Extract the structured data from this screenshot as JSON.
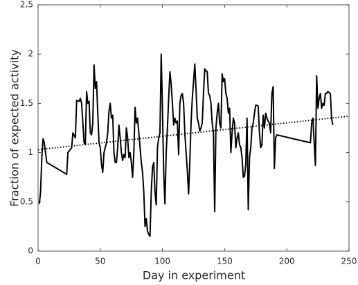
{
  "chart_data": {
    "type": "line",
    "xlabel": "Day in experiment",
    "ylabel": "Fraction of expected activity",
    "xlim": [
      0,
      250
    ],
    "xticks": [
      0,
      50,
      100,
      150,
      200,
      250
    ],
    "ylim": [
      0,
      2.5
    ],
    "yticks": [
      0,
      0.5,
      1,
      1.5,
      2,
      2.5
    ],
    "color": "#000000",
    "x": [
      1,
      2,
      3,
      4,
      5,
      7,
      23,
      24,
      27,
      28,
      30,
      31,
      33,
      34,
      35,
      36,
      37,
      38,
      39,
      40,
      41,
      42,
      43,
      44,
      45,
      46,
      47,
      48,
      49,
      50,
      51,
      52,
      53,
      54,
      55,
      56,
      57,
      58,
      59,
      60,
      61,
      62,
      63,
      64,
      65,
      66,
      67,
      68,
      69,
      70,
      71,
      72,
      73,
      74,
      75,
      76,
      77,
      78,
      79,
      80,
      81,
      82,
      83,
      84,
      85,
      86,
      87,
      88,
      89,
      90,
      91,
      92,
      93,
      94,
      95,
      96,
      97,
      98,
      99,
      100,
      101,
      102,
      103,
      104,
      105,
      106,
      107,
      108,
      109,
      110,
      111,
      112,
      113,
      114,
      115,
      116,
      117,
      118,
      119,
      120,
      121,
      122,
      123,
      124,
      125,
      126,
      127,
      128,
      129,
      130,
      131,
      132,
      133,
      134,
      135,
      136,
      137,
      138,
      139,
      140,
      141,
      142,
      143,
      144,
      145,
      146,
      147,
      148,
      149,
      150,
      151,
      152,
      153,
      154,
      155,
      156,
      157,
      158,
      159,
      160,
      161,
      162,
      163,
      164,
      165,
      166,
      167,
      168,
      169,
      170,
      171,
      172,
      173,
      174,
      175,
      176,
      177,
      178,
      179,
      180,
      181,
      182,
      183,
      184,
      185,
      186,
      187,
      188,
      189,
      190,
      191,
      192,
      219,
      220,
      221,
      222,
      223,
      224,
      225,
      226,
      227,
      228,
      229,
      230,
      231,
      232,
      233,
      234,
      235,
      236,
      237
    ],
    "values": [
      0.48,
      0.6,
      0.95,
      1.14,
      1.1,
      0.9,
      0.78,
      1.0,
      1.05,
      1.2,
      1.15,
      1.53,
      1.52,
      1.55,
      1.5,
      1.3,
      1.1,
      1.08,
      1.62,
      1.5,
      1.52,
      1.2,
      1.18,
      1.3,
      1.89,
      1.65,
      1.72,
      1.4,
      1.1,
      1.05,
      0.88,
      0.8,
      1.0,
      1.05,
      1.1,
      1.2,
      1.42,
      1.5,
      1.35,
      1.38,
      1.0,
      0.9,
      0.9,
      1.05,
      1.28,
      1.15,
      1.0,
      0.92,
      0.98,
      0.95,
      1.25,
      1.15,
      0.95,
      1.0,
      0.9,
      0.75,
      1.0,
      1.46,
      1.3,
      1.35,
      1.2,
      1.05,
      0.9,
      0.8,
      0.6,
      0.25,
      0.33,
      0.2,
      0.17,
      0.15,
      0.6,
      0.85,
      0.9,
      0.6,
      0.47,
      1.05,
      1.15,
      1.2,
      2.0,
      1.45,
      0.8,
      0.48,
      1.0,
      1.25,
      1.55,
      1.82,
      1.7,
      1.5,
      1.28,
      1.35,
      1.3,
      1.32,
      0.98,
      1.5,
      1.58,
      1.6,
      1.5,
      1.2,
      1.0,
      0.82,
      0.58,
      0.9,
      1.3,
      1.55,
      1.72,
      1.9,
      1.65,
      1.35,
      1.3,
      1.22,
      1.25,
      1.3,
      1.6,
      1.85,
      1.83,
      1.82,
      1.6,
      1.58,
      1.5,
      1.3,
      1.2,
      0.4,
      1.25,
      1.4,
      1.5,
      1.3,
      1.25,
      1.8,
      1.72,
      1.75,
      1.6,
      1.55,
      1.4,
      1.45,
      1.0,
      1.2,
      1.35,
      1.3,
      1.05,
      1.15,
      1.2,
      1.08,
      1.05,
      0.95,
      0.75,
      0.76,
      0.88,
      1.35,
      0.42,
      0.95,
      1.05,
      1.25,
      1.3,
      1.4,
      1.48,
      1.48,
      1.47,
      1.2,
      1.05,
      1.08,
      1.38,
      1.25,
      1.4,
      1.35,
      1.32,
      1.3,
      1.2,
      1.6,
      1.67,
      0.84,
      1.15,
      1.18,
      1.1,
      1.3,
      1.35,
      1.1,
      0.87,
      1.78,
      1.45,
      1.55,
      1.6,
      1.45,
      1.5,
      1.48,
      1.6,
      1.6,
      1.62,
      1.61,
      1.6,
      1.35,
      1.28
    ],
    "trend_line": {
      "x": [
        0,
        250
      ],
      "values": [
        1.03,
        1.37
      ],
      "style": "dotted"
    }
  }
}
